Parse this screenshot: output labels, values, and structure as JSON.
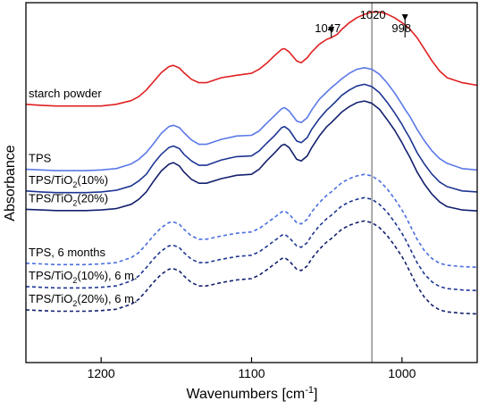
{
  "chart_data": {
    "type": "line",
    "xlabel": "Wavenumbers [cm",
    "xlabel_sup": "-1",
    "xlabel_end": "]",
    "ylabel": "Absorbance",
    "x_reversed": true,
    "xlim": [
      1250,
      950
    ],
    "ylim": [
      -0.2,
      10.6
    ],
    "xticks": [
      1200,
      1100,
      1000
    ],
    "yticks_shown": false,
    "grid": false,
    "legend": "none",
    "x": [
      1250,
      1240,
      1230,
      1220,
      1210,
      1200,
      1190,
      1180,
      1175,
      1170,
      1165,
      1160,
      1155,
      1152,
      1148,
      1145,
      1140,
      1135,
      1130,
      1120,
      1110,
      1100,
      1095,
      1090,
      1085,
      1080,
      1078,
      1075,
      1070,
      1067,
      1063,
      1060,
      1055,
      1050,
      1047,
      1043,
      1040,
      1035,
      1030,
      1025,
      1020,
      1015,
      1010,
      1005,
      1000,
      998,
      995,
      990,
      985,
      980,
      975,
      970,
      960,
      950
    ],
    "series": [
      {
        "name": "starch powder",
        "label_parts": [
          "starch powder"
        ],
        "color": "#e02020",
        "dashed": false,
        "values": [
          7.55,
          7.52,
          7.5,
          7.5,
          7.5,
          7.5,
          7.55,
          7.66,
          7.78,
          7.98,
          8.24,
          8.5,
          8.68,
          8.72,
          8.64,
          8.5,
          8.3,
          8.2,
          8.2,
          8.35,
          8.42,
          8.48,
          8.6,
          8.78,
          9.0,
          9.2,
          9.22,
          9.12,
          8.85,
          8.8,
          8.95,
          9.12,
          9.35,
          9.5,
          9.55,
          9.65,
          9.8,
          10.0,
          10.15,
          10.25,
          10.32,
          10.32,
          10.26,
          10.15,
          10.0,
          9.93,
          9.82,
          9.55,
          9.2,
          8.85,
          8.55,
          8.35,
          8.2,
          8.12
        ]
      },
      {
        "name": "TPS",
        "label_parts": [
          "TPS"
        ],
        "color": "#5b79e6",
        "dashed": false,
        "values": [
          5.6,
          5.58,
          5.56,
          5.56,
          5.56,
          5.58,
          5.62,
          5.76,
          5.9,
          6.1,
          6.38,
          6.68,
          6.88,
          6.92,
          6.85,
          6.7,
          6.48,
          6.35,
          6.35,
          6.5,
          6.6,
          6.62,
          6.75,
          6.98,
          7.2,
          7.42,
          7.45,
          7.35,
          7.05,
          7.0,
          7.15,
          7.38,
          7.7,
          7.92,
          8.05,
          8.2,
          8.32,
          8.48,
          8.6,
          8.65,
          8.6,
          8.45,
          8.2,
          7.9,
          7.55,
          7.4,
          7.2,
          6.8,
          6.45,
          6.15,
          5.92,
          5.78,
          5.62,
          5.58
        ]
      },
      {
        "name": "TPS/TiO2(10%)",
        "label_parts": [
          "TPS/TiO",
          "2",
          "(10%)"
        ],
        "color": "#1d3593",
        "dashed": false,
        "values": [
          4.95,
          4.92,
          4.9,
          4.9,
          4.9,
          4.92,
          4.97,
          5.1,
          5.25,
          5.45,
          5.78,
          6.05,
          6.25,
          6.3,
          6.22,
          6.05,
          5.85,
          5.72,
          5.72,
          5.88,
          5.98,
          6.0,
          6.15,
          6.38,
          6.6,
          6.85,
          6.88,
          6.78,
          6.45,
          6.4,
          6.55,
          6.8,
          7.12,
          7.38,
          7.5,
          7.68,
          7.82,
          7.98,
          8.1,
          8.15,
          8.08,
          7.9,
          7.62,
          7.3,
          6.95,
          6.78,
          6.55,
          6.1,
          5.75,
          5.45,
          5.22,
          5.08,
          4.95,
          4.92
        ]
      },
      {
        "name": "TPS/TiO2(20%)",
        "label_parts": [
          "TPS/TiO",
          "2",
          "(20%)"
        ],
        "color": "#13206e",
        "dashed": false,
        "values": [
          4.4,
          4.38,
          4.36,
          4.36,
          4.36,
          4.38,
          4.42,
          4.55,
          4.7,
          4.92,
          5.25,
          5.55,
          5.75,
          5.8,
          5.7,
          5.52,
          5.3,
          5.18,
          5.18,
          5.32,
          5.42,
          5.45,
          5.6,
          5.85,
          6.08,
          6.32,
          6.35,
          6.25,
          5.9,
          5.85,
          6.0,
          6.25,
          6.6,
          6.88,
          7.0,
          7.18,
          7.32,
          7.48,
          7.6,
          7.65,
          7.58,
          7.4,
          7.1,
          6.78,
          6.4,
          6.22,
          5.98,
          5.52,
          5.15,
          4.85,
          4.62,
          4.48,
          4.38,
          4.35
        ]
      },
      {
        "name": "TPS, 6 months",
        "label_parts": [
          "TPS, 6 months"
        ],
        "color": "#4a6ee0",
        "dashed": true,
        "values": [
          2.78,
          2.76,
          2.74,
          2.74,
          2.74,
          2.76,
          2.8,
          2.95,
          3.1,
          3.35,
          3.62,
          3.85,
          4.0,
          4.02,
          3.95,
          3.8,
          3.6,
          3.5,
          3.5,
          3.6,
          3.68,
          3.72,
          3.82,
          3.98,
          4.15,
          4.32,
          4.35,
          4.25,
          4.0,
          3.96,
          4.1,
          4.32,
          4.6,
          4.82,
          4.92,
          5.08,
          5.2,
          5.32,
          5.4,
          5.45,
          5.4,
          5.25,
          5.02,
          4.72,
          4.38,
          4.22,
          3.95,
          3.5,
          3.15,
          2.92,
          2.78,
          2.72,
          2.68,
          2.66
        ]
      },
      {
        "name": "TPS/TiO2(10%), 6 m.",
        "label_parts": [
          "TPS/TiO",
          "2",
          "(10%), 6 m."
        ],
        "color": "#1d3593",
        "dashed": true,
        "values": [
          2.08,
          2.06,
          2.04,
          2.04,
          2.04,
          2.06,
          2.1,
          2.25,
          2.4,
          2.65,
          2.92,
          3.15,
          3.3,
          3.32,
          3.25,
          3.1,
          2.9,
          2.8,
          2.8,
          2.9,
          2.98,
          3.02,
          3.12,
          3.28,
          3.45,
          3.62,
          3.65,
          3.55,
          3.3,
          3.26,
          3.4,
          3.62,
          3.9,
          4.12,
          4.22,
          4.38,
          4.5,
          4.62,
          4.7,
          4.75,
          4.7,
          4.55,
          4.32,
          4.02,
          3.68,
          3.52,
          3.25,
          2.8,
          2.45,
          2.22,
          2.08,
          2.02,
          1.98,
          1.96
        ]
      },
      {
        "name": "TPS/TiO2(20%), 6 m.",
        "label_parts": [
          "TPS/TiO",
          "2",
          "(20%), 6 m."
        ],
        "color": "#13206e",
        "dashed": true,
        "values": [
          1.38,
          1.36,
          1.34,
          1.34,
          1.34,
          1.36,
          1.4,
          1.55,
          1.7,
          1.95,
          2.22,
          2.45,
          2.6,
          2.62,
          2.55,
          2.4,
          2.2,
          2.1,
          2.1,
          2.2,
          2.28,
          2.32,
          2.42,
          2.58,
          2.75,
          2.92,
          2.95,
          2.85,
          2.6,
          2.56,
          2.7,
          2.92,
          3.2,
          3.42,
          3.52,
          3.68,
          3.8,
          3.92,
          4.0,
          4.05,
          4.0,
          3.85,
          3.62,
          3.32,
          2.98,
          2.82,
          2.55,
          2.1,
          1.75,
          1.52,
          1.38,
          1.32,
          1.28,
          1.26
        ]
      }
    ],
    "reference_line": {
      "x": 1020,
      "label": "1020",
      "color": "#888888"
    },
    "annotations": [
      {
        "label": "1047",
        "x": 1047
      },
      {
        "label": "998",
        "x": 998
      }
    ]
  }
}
